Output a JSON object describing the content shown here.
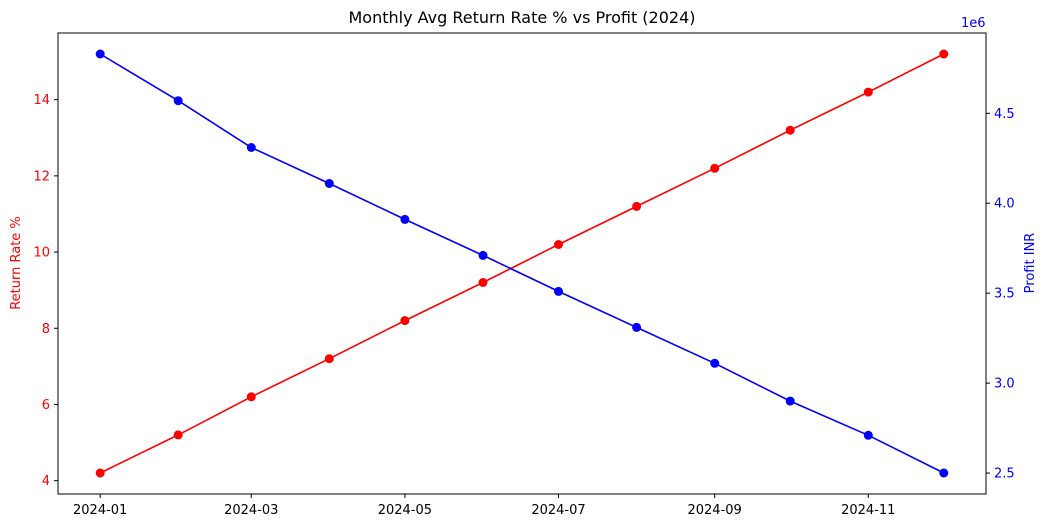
{
  "chart_data": {
    "type": "line",
    "title": "Monthly Avg Return Rate % vs Profit (2024)",
    "x": [
      "2024-01-01",
      "2024-02-01",
      "2024-03-01",
      "2024-04-01",
      "2024-05-01",
      "2024-06-01",
      "2024-07-01",
      "2024-08-01",
      "2024-09-01",
      "2024-10-01",
      "2024-11-01",
      "2024-12-01"
    ],
    "x_ticks": [
      "2024-01",
      "2024-03",
      "2024-05",
      "2024-07",
      "2024-09",
      "2024-11"
    ],
    "series": [
      {
        "axis": "left",
        "color": "#ff0000",
        "values": [
          4.2,
          5.2,
          6.2,
          7.2,
          8.2,
          9.2,
          10.2,
          11.2,
          12.2,
          13.2,
          14.2,
          15.2
        ]
      },
      {
        "axis": "right",
        "color": "#0000ff",
        "values": [
          4830000,
          4570000,
          4310000,
          4110000,
          3910000,
          3710000,
          3510000,
          3310000,
          3110000,
          2900000,
          2710000,
          2500000
        ]
      }
    ],
    "y_left": {
      "label": "Return Rate %",
      "color": "#ff0000",
      "ticks": [
        4,
        6,
        8,
        10,
        12,
        14
      ],
      "ylim": [
        3.65,
        15.75
      ]
    },
    "y_right": {
      "label": "Profit INR",
      "color": "#0000ff",
      "ticks": [
        2.5,
        3.0,
        3.5,
        4.0,
        4.5
      ],
      "tick_labels": [
        "2.5",
        "3.0",
        "3.5",
        "4.0",
        "4.5"
      ],
      "scale_note": "1e6",
      "ylim": [
        2383500,
        4946500
      ]
    },
    "grid": false
  }
}
